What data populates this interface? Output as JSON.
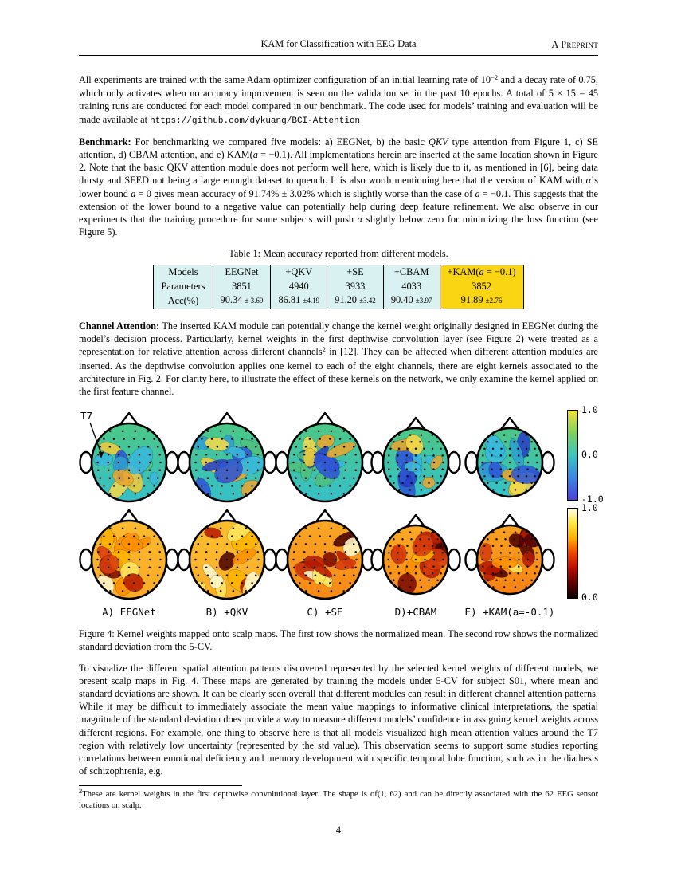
{
  "header": {
    "title": "KAM for Classification with EEG Data",
    "right": "A Preprint"
  },
  "paragraphs": {
    "p1": [
      {
        "t": "All experiments are trained with the same Adam optimizer configuration of an initial learning rate of 10"
      },
      {
        "t": "−2",
        "s": "sup"
      },
      {
        "t": " and a decay rate of 0.75, which only activates when no accuracy improvement is seen on the validation set in the past 10 epochs. A total of 5 × 15 = 45 training runs are conducted for each model compared in our benchmark. The code used for models’ training and evaluation will be made available at "
      },
      {
        "t": "https://github.com/dykuang/BCI-Attention",
        "s": "m",
        "n": "code-repo-link",
        "x": true
      }
    ],
    "benchmark": [
      {
        "t": "Benchmark: ",
        "s": "b"
      },
      {
        "t": "For benchmarking we compared five models: a) EEGNet, b) the basic "
      },
      {
        "t": "QKV",
        "s": "i"
      },
      {
        "t": " type attention from Figure 1, c) SE attention, d) CBAM attention, and e) KAM("
      },
      {
        "t": "a",
        "s": "i"
      },
      {
        "t": " = −0.1). All implementations herein are inserted at the same location shown in Figure 2. Note that the basic QKV attention module does not perform well here, which is likely due to it, as mentioned in [6], being data thirsty and SEED not being a large enough dataset to quench. It is also worth mentioning here that the version of KAM with "
      },
      {
        "t": "α",
        "s": "i"
      },
      {
        "t": "’s lower bound "
      },
      {
        "t": "a",
        "s": "i"
      },
      {
        "t": " = 0 gives mean accuracy of 91.74% ± 3.02% which is slightly worse than the case of "
      },
      {
        "t": "a",
        "s": "i"
      },
      {
        "t": " = −0.1. This suggests that the extension of the lower bound to a negative value can potentially help during deep feature refinement. We also observe in our experiments that the training procedure for some subjects will push "
      },
      {
        "t": "α",
        "s": "i"
      },
      {
        "t": " slightly below zero for minimizing the loss function (see Figure 5)."
      }
    ],
    "channel": [
      {
        "t": "Channel Attention: ",
        "s": "b"
      },
      {
        "t": "The inserted KAM module can potentially change the kernel weight originally designed in EEGNet during the model’s decision process. Particularly, kernel weights in the first depthwise convolution layer (see Figure 2) were treated as a representation for relative attention across different channels"
      },
      {
        "t": "2",
        "s": "sup"
      },
      {
        "t": " in [12]. They can be affected when different attention modules are inserted. As the depthwise convolution applies one kernel to each of the eight channels, there are eight kernels associated to the architecture in Fig. 2. For clarity here, to illustrate the effect of these kernels on the network, we only examine the kernel applied on the first feature channel."
      }
    ],
    "p4": [
      {
        "t": "To visualize the different spatial attention patterns discovered represented by the selected kernel weights of different models, we present scalp maps in Fig. 4. These maps are generated by training the models under 5-CV for subject S01, where mean and standard deviations are shown. It can be clearly seen overall that different modules can result in different channel attention patterns. While it may be difficult to immediately associate the mean value mappings to informative clinical interpretations, the spatial magnitude of the standard deviation does provide a way to measure different models’ confidence in assigning kernel weights across different regions. For example, one thing to observe here is that all models visualized high mean attention values around the T7 region with relatively low uncertainty (represented by the std value). This observation seems to support some studies reporting correlations between emotional deficiency and memory development with specific temporal lobe function, such as in the diathesis of schizophrenia, e.g."
      }
    ]
  },
  "table": {
    "caption": "Table 1: Mean accuracy reported from different models.",
    "row_labels": [
      "Models",
      "Parameters",
      "Acc(%)"
    ],
    "columns": [
      {
        "model": "EEGNet",
        "model_italic_a": false,
        "params": "3851",
        "acc": "90.34",
        "pm": "± 3.69",
        "highlight": false
      },
      {
        "model": "+QKV",
        "model_italic_a": false,
        "params": "4940",
        "acc": "86.81",
        "pm": "±4.19",
        "highlight": false
      },
      {
        "model": "+SE",
        "model_italic_a": false,
        "params": "3933",
        "acc": "91.20",
        "pm": "±3.42",
        "highlight": false
      },
      {
        "model": "+CBAM",
        "model_italic_a": false,
        "params": "4033",
        "acc": "90.40",
        "pm": "±3.97",
        "highlight": false
      },
      {
        "model": "+KAM(a = −0.1)",
        "model_italic_a": true,
        "params": "3852",
        "acc": "91.89",
        "pm": "±2.76",
        "highlight": true
      }
    ],
    "colors": {
      "cell_bg": "#d9f1f1",
      "highlight_bg": "#f9d513"
    }
  },
  "figure": {
    "t7_label": "T7",
    "caption": "Figure 4: Kernel weights mapped onto scalp maps. The first row shows the normalized mean. The second row shows the normalized standard deviation from the 5-CV.",
    "maps": [
      {
        "label": "A) EEGNet",
        "mean_seed": 3,
        "std_seed": 104,
        "std_heat": 0.42
      },
      {
        "label": "B) +QKV",
        "mean_seed": 7,
        "std_seed": 205,
        "std_heat": 0.38
      },
      {
        "label": "C) +SE",
        "mean_seed": 12,
        "std_seed": 311,
        "std_heat": 0.72
      },
      {
        "label": "D)+CBAM",
        "mean_seed": 19,
        "std_seed": 412,
        "std_heat": 0.68
      },
      {
        "label": "E) +KAM(a=-0.1)",
        "mean_seed": 23,
        "std_seed": 519,
        "std_heat": 0.78
      }
    ],
    "mean_palette": {
      "base_top": "#4cc884",
      "base_bottom": "#35c0ca",
      "blobs": [
        "#2f55d6",
        "#2840c8",
        "#4fc07c",
        "#f0cb3a",
        "#e9a52e",
        "#38b8dd",
        "#2f9fd0",
        "#f2d94a"
      ]
    },
    "std_palette": {
      "base_yellow": "#ffd83c",
      "base_red": "#f25c00",
      "dark_blobs": [
        "#d83c0c",
        "#b81a00",
        "#7d0a00",
        "#4f0300"
      ],
      "light_blobs": [
        "#fff7cc",
        "#ffe65e",
        "#ffb400",
        "#ff9000"
      ]
    },
    "colorbar_mean": {
      "colors": [
        "#f2e23c",
        "#7fd05f",
        "#3ec4bd",
        "#3f86e0",
        "#4a41d6"
      ],
      "ticks": [
        {
          "label": "1.0",
          "pos": 0
        },
        {
          "label": "0.0",
          "pos": 0.5
        },
        {
          "label": "-1.0",
          "pos": 1
        }
      ]
    },
    "colorbar_std": {
      "colors": [
        "#fffdf0",
        "#ffe93e",
        "#ffae00",
        "#ee4400",
        "#b80d00",
        "#5c0300",
        "#0c0000"
      ],
      "ticks": [
        {
          "label": "1.0",
          "pos": 0
        },
        {
          "label": "0.0",
          "pos": 1
        }
      ]
    }
  },
  "footnote": {
    "segs": [
      {
        "t": "2",
        "s": "sup"
      },
      {
        "t": "These are kernel weights in the first depthwise convolutional layer. The shape is of(1, 62) and can be directly associated with the 62 EEG sensor locations on scalp."
      }
    ]
  },
  "page_number": "4"
}
